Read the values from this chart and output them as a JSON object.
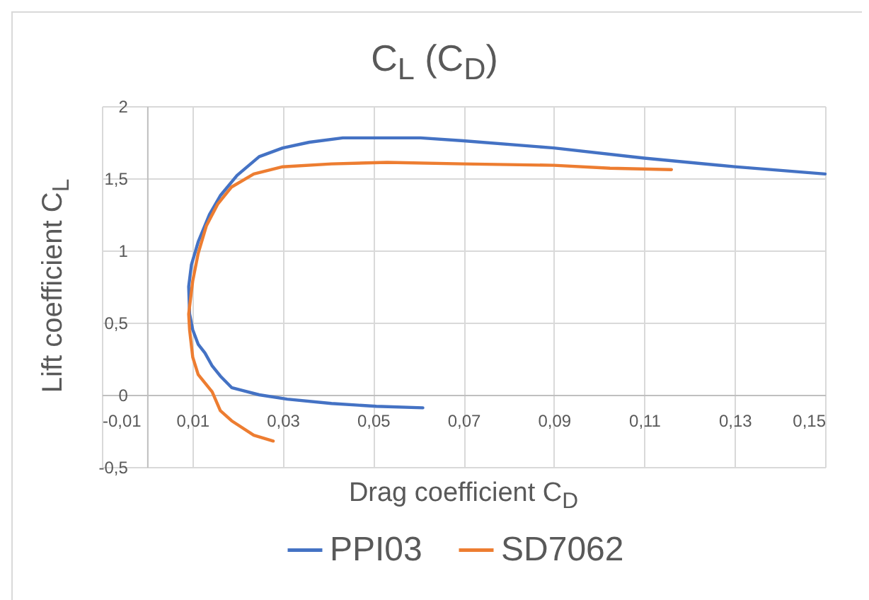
{
  "chart_data": {
    "type": "line",
    "title": "C$_{L}$ (C$_{D}$)",
    "xlabel": "Drag coefficient C$_{D}$",
    "ylabel": "Lift coefficient C$_{L}$",
    "series": [
      {
        "name": "PPI03",
        "color": "#4472c4",
        "x": [
          0.061,
          0.0507,
          0.0408,
          0.031,
          0.0248,
          0.0211,
          0.0187,
          0.0162,
          0.0144,
          0.0128,
          0.0113,
          0.0101,
          0.0094,
          0.0092,
          0.0098,
          0.0113,
          0.0138,
          0.0162,
          0.0199,
          0.0248,
          0.03,
          0.0359,
          0.0433,
          0.0531,
          0.0605,
          0.07,
          0.09,
          0.11,
          0.13,
          0.15
        ],
        "values": [
          -0.09,
          -0.08,
          -0.06,
          -0.03,
          0.0,
          0.03,
          0.05,
          0.13,
          0.2,
          0.29,
          0.35,
          0.45,
          0.56,
          0.75,
          0.9,
          1.06,
          1.25,
          1.38,
          1.52,
          1.65,
          1.71,
          1.75,
          1.78,
          1.78,
          1.78,
          1.76,
          1.71,
          1.64,
          1.58,
          1.53
        ]
      },
      {
        "name": "SD7062",
        "color": "#ed7d31",
        "x": [
          0.0279,
          0.0236,
          0.0187,
          0.0162,
          0.0144,
          0.0113,
          0.0101,
          0.0094,
          0.0092,
          0.0101,
          0.0113,
          0.0131,
          0.0156,
          0.0187,
          0.0236,
          0.03,
          0.0408,
          0.0531,
          0.07,
          0.09,
          0.1024,
          0.116
        ],
        "values": [
          -0.32,
          -0.28,
          -0.18,
          -0.11,
          0.02,
          0.14,
          0.26,
          0.45,
          0.56,
          0.79,
          0.98,
          1.17,
          1.32,
          1.44,
          1.53,
          1.58,
          1.6,
          1.61,
          1.6,
          1.59,
          1.57,
          1.56
        ]
      }
    ],
    "xlim": [
      -0.01,
      0.15
    ],
    "xticks": [
      {
        "value": -0.01,
        "label": "-0,01"
      },
      {
        "value": 0.01,
        "label": "0,01"
      },
      {
        "value": 0.03,
        "label": "0,03"
      },
      {
        "value": 0.05,
        "label": "0,05"
      },
      {
        "value": 0.07,
        "label": "0,07"
      },
      {
        "value": 0.09,
        "label": "0,09"
      },
      {
        "value": 0.11,
        "label": "0,11"
      },
      {
        "value": 0.13,
        "label": "0,13"
      },
      {
        "value": 0.15,
        "label": "0,15"
      }
    ],
    "ylim": [
      -0.5,
      2
    ],
    "yticks": [
      {
        "value": -0.5,
        "label": "-0,5"
      },
      0,
      {
        "value": 0.5,
        "label": "0,5"
      },
      1,
      {
        "value": 1.5,
        "label": "1,5"
      },
      2
    ],
    "grid": true,
    "legend": "bottom",
    "marker": "none",
    "line_style": "solid"
  }
}
